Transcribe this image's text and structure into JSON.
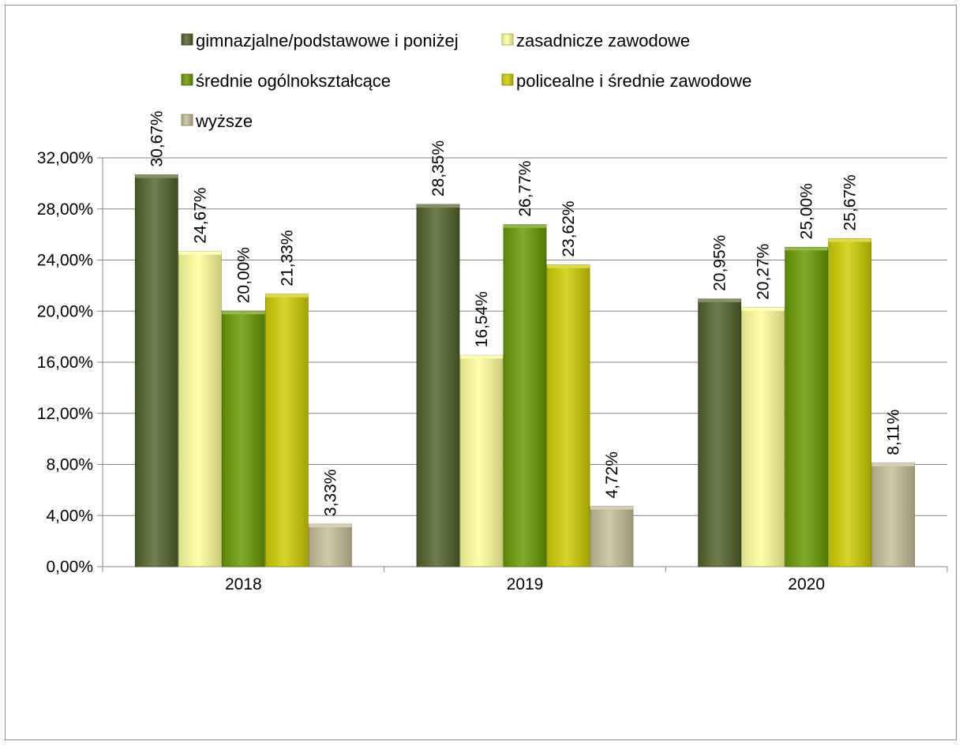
{
  "chart_data": {
    "type": "bar",
    "title": "",
    "xlabel": "",
    "ylabel": "",
    "categories": [
      "2018",
      "2019",
      "2020"
    ],
    "ylim": [
      0,
      32
    ],
    "ytick_step": 4,
    "ytick_labels": [
      "0,00%",
      "4,00%",
      "8,00%",
      "12,00%",
      "16,00%",
      "20,00%",
      "24,00%",
      "28,00%",
      "32,00%"
    ],
    "grid": true,
    "legend_position": "top",
    "series": [
      {
        "name": "gimnazjalne/podstawowe i poniżej",
        "color": "#4f6228",
        "values": [
          30.67,
          28.35,
          20.95
        ],
        "labels": [
          "30,67%",
          "28,35%",
          "20,95%"
        ]
      },
      {
        "name": "zasadnicze zawodowe",
        "color": "#ffff99",
        "values": [
          24.67,
          16.54,
          20.27
        ],
        "labels": [
          "24,67%",
          "16,54%",
          "20,27%"
        ]
      },
      {
        "name": "średnie ogólnokształcące",
        "color": "#669900",
        "values": [
          20.0,
          26.77,
          25.0
        ],
        "labels": [
          "20,00%",
          "26,77%",
          "25,00%"
        ]
      },
      {
        "name": "policealne i średnie zawodowe",
        "color": "#cccc00",
        "values": [
          21.33,
          23.62,
          25.67
        ],
        "labels": [
          "21,33%",
          "23,62%",
          "25,67%"
        ]
      },
      {
        "name": "wyższe",
        "color": "#c4bd97",
        "values": [
          3.33,
          4.72,
          8.11
        ],
        "labels": [
          "3,33%",
          "4,72%",
          "8,11%"
        ]
      }
    ]
  }
}
